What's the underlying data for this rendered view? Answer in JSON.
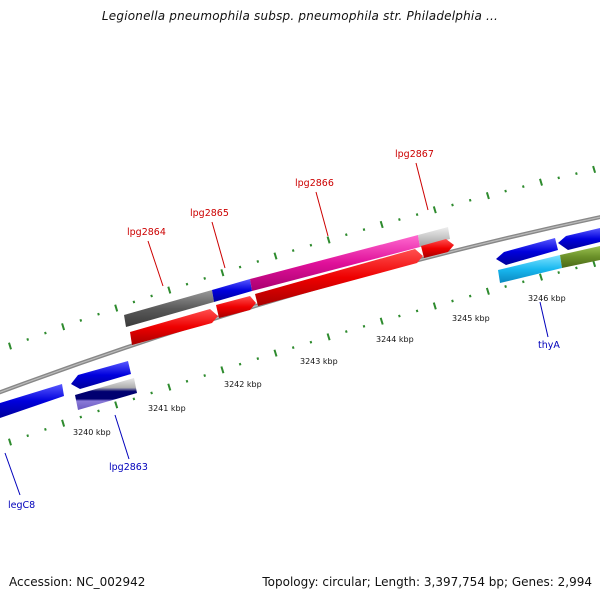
{
  "title": "Legionella pneumophila subsp. pneumophila str. Philadelphia ...",
  "footer": {
    "accession": "Accession: NC_002942",
    "topology": "Topology: circular; Length: 3,397,754 bp; Genes: 2,994"
  },
  "scale_labels": [
    "3240 kbp",
    "3241 kbp",
    "3242 kbp",
    "3243 kbp",
    "3244 kbp",
    "3245 kbp",
    "3246 kbp"
  ],
  "genes_top": [
    "lpg2864",
    "lpg2865",
    "lpg2866",
    "lpg2867"
  ],
  "genes_bottom": [
    "legC8",
    "lpg2863",
    "thyA"
  ],
  "colors": {
    "red_label": "#cc0000",
    "blue_label": "#0000bb",
    "backbone": "#888888",
    "tick": "#2e8b2e"
  }
}
